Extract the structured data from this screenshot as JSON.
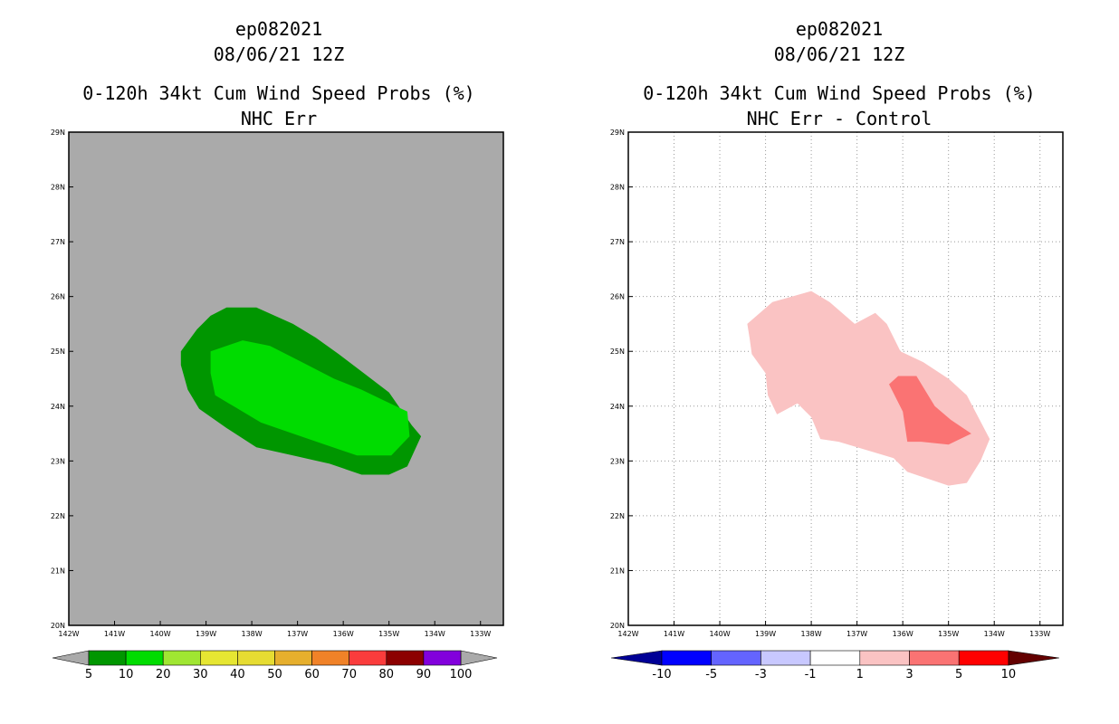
{
  "chart_data": [
    {
      "type": "filled-contour-map",
      "storm_id": "ep082021",
      "datetime": "08/06/21 12Z",
      "title": "0-120h 34kt Cum Wind Speed Probs (%)",
      "subtitle": "NHC Err",
      "background_color": "#aaaaaa",
      "x_range": [
        -142,
        -132.5
      ],
      "y_range": [
        20,
        29
      ],
      "x_ticks": [
        {
          "v": -142,
          "label": "142W"
        },
        {
          "v": -141,
          "label": "141W"
        },
        {
          "v": -140,
          "label": "140W"
        },
        {
          "v": -139,
          "label": "139W"
        },
        {
          "v": -138,
          "label": "138W"
        },
        {
          "v": -137,
          "label": "137W"
        },
        {
          "v": -136,
          "label": "136W"
        },
        {
          "v": -135,
          "label": "135W"
        },
        {
          "v": -134,
          "label": "134W"
        },
        {
          "v": -133,
          "label": "133W"
        }
      ],
      "y_ticks": [
        {
          "v": 20,
          "label": "20N"
        },
        {
          "v": 21,
          "label": "21N"
        },
        {
          "v": 22,
          "label": "22N"
        },
        {
          "v": 23,
          "label": "23N"
        },
        {
          "v": 24,
          "label": "24N"
        },
        {
          "v": 25,
          "label": "25N"
        },
        {
          "v": 26,
          "label": "26N"
        },
        {
          "v": 27,
          "label": "27N"
        },
        {
          "v": 28,
          "label": "28N"
        },
        {
          "v": 29,
          "label": "29N"
        }
      ],
      "contours": [
        {
          "level": "5-10",
          "color": "#009600",
          "lonlat": [
            [
              -138.55,
              25.8
            ],
            [
              -137.9,
              25.8
            ],
            [
              -137.1,
              25.5
            ],
            [
              -136.6,
              25.25
            ],
            [
              -136.1,
              24.95
            ],
            [
              -135.55,
              24.6
            ],
            [
              -135.0,
              24.25
            ],
            [
              -134.5,
              23.65
            ],
            [
              -134.3,
              23.45
            ],
            [
              -134.6,
              22.9
            ],
            [
              -135.0,
              22.75
            ],
            [
              -135.6,
              22.75
            ],
            [
              -136.3,
              22.95
            ],
            [
              -137.1,
              23.1
            ],
            [
              -137.9,
              23.25
            ],
            [
              -138.55,
              23.6
            ],
            [
              -139.15,
              23.95
            ],
            [
              -139.4,
              24.3
            ],
            [
              -139.55,
              24.75
            ],
            [
              -139.55,
              25.0
            ],
            [
              -139.2,
              25.4
            ],
            [
              -138.9,
              25.65
            ]
          ]
        },
        {
          "level": "10-20",
          "color": "#00dc00",
          "lonlat": [
            [
              -138.9,
              25.0
            ],
            [
              -138.2,
              25.2
            ],
            [
              -137.6,
              25.1
            ],
            [
              -136.9,
              24.8
            ],
            [
              -136.2,
              24.5
            ],
            [
              -135.6,
              24.3
            ],
            [
              -135.1,
              24.1
            ],
            [
              -134.6,
              23.9
            ],
            [
              -134.55,
              23.45
            ],
            [
              -134.95,
              23.1
            ],
            [
              -135.7,
              23.1
            ],
            [
              -136.4,
              23.3
            ],
            [
              -137.1,
              23.5
            ],
            [
              -137.8,
              23.7
            ],
            [
              -138.4,
              24.0
            ],
            [
              -138.8,
              24.2
            ],
            [
              -138.9,
              24.6
            ]
          ]
        }
      ],
      "colorbar": {
        "labels": [
          "5",
          "10",
          "20",
          "30",
          "40",
          "50",
          "60",
          "70",
          "80",
          "90",
          "100"
        ],
        "colors": [
          "#009600",
          "#00dc00",
          "#a0e632",
          "#e6e632",
          "#e6dc32",
          "#e6af2d",
          "#f08228",
          "#fa3c3c",
          "#8c0000",
          "#8200dc"
        ],
        "end_color": "#aaaaaa"
      }
    },
    {
      "type": "filled-contour-map",
      "storm_id": "ep082021",
      "datetime": "08/06/21 12Z",
      "title": "0-120h 34kt Cum Wind Speed Probs (%)",
      "subtitle": "NHC Err - Control",
      "background_color": "#ffffff",
      "grid": true,
      "x_range": [
        -142,
        -132.5
      ],
      "y_range": [
        20,
        29
      ],
      "x_ticks": [
        {
          "v": -142,
          "label": "142W"
        },
        {
          "v": -141,
          "label": "141W"
        },
        {
          "v": -140,
          "label": "140W"
        },
        {
          "v": -139,
          "label": "139W"
        },
        {
          "v": -138,
          "label": "138W"
        },
        {
          "v": -137,
          "label": "137W"
        },
        {
          "v": -136,
          "label": "136W"
        },
        {
          "v": -135,
          "label": "135W"
        },
        {
          "v": -134,
          "label": "134W"
        },
        {
          "v": -133,
          "label": "133W"
        }
      ],
      "y_ticks": [
        {
          "v": 20,
          "label": "20N"
        },
        {
          "v": 21,
          "label": "21N"
        },
        {
          "v": 22,
          "label": "22N"
        },
        {
          "v": 23,
          "label": "23N"
        },
        {
          "v": 24,
          "label": "24N"
        },
        {
          "v": 25,
          "label": "25N"
        },
        {
          "v": 26,
          "label": "26N"
        },
        {
          "v": 27,
          "label": "27N"
        },
        {
          "v": 28,
          "label": "28N"
        },
        {
          "v": 29,
          "label": "29N"
        }
      ],
      "contours": [
        {
          "level": "1-3",
          "color": "#fac3c3",
          "lonlat": [
            [
              -139.4,
              25.5
            ],
            [
              -138.85,
              25.9
            ],
            [
              -138.0,
              26.1
            ],
            [
              -137.6,
              25.9
            ],
            [
              -137.05,
              25.5
            ],
            [
              -136.6,
              25.7
            ],
            [
              -136.35,
              25.5
            ],
            [
              -136.05,
              25.0
            ],
            [
              -135.55,
              24.8
            ],
            [
              -135.0,
              24.5
            ],
            [
              -134.6,
              24.2
            ],
            [
              -134.1,
              23.4
            ],
            [
              -134.3,
              23.0
            ],
            [
              -134.6,
              22.6
            ],
            [
              -135.0,
              22.55
            ],
            [
              -135.9,
              22.8
            ],
            [
              -136.2,
              23.05
            ],
            [
              -137.4,
              23.35
            ],
            [
              -137.8,
              23.4
            ],
            [
              -138.0,
              23.8
            ],
            [
              -138.3,
              24.05
            ],
            [
              -138.75,
              23.85
            ],
            [
              -138.95,
              24.2
            ],
            [
              -139.0,
              24.6
            ],
            [
              -139.3,
              24.95
            ],
            [
              -139.35,
              25.25
            ]
          ]
        },
        {
          "level": "3-5",
          "color": "#fa7373",
          "lonlat": [
            [
              -136.1,
              24.55
            ],
            [
              -135.7,
              24.55
            ],
            [
              -135.3,
              24.0
            ],
            [
              -134.95,
              23.75
            ],
            [
              -134.5,
              23.5
            ],
            [
              -135.0,
              23.3
            ],
            [
              -135.6,
              23.35
            ],
            [
              -135.9,
              23.35
            ],
            [
              -136.0,
              23.9
            ],
            [
              -136.3,
              24.4
            ]
          ]
        }
      ],
      "colorbar": {
        "labels": [
          "-10",
          "-5",
          "-3",
          "-1",
          "1",
          "3",
          "5",
          "10"
        ],
        "colors": [
          "#0000ff",
          "#6464ff",
          "#c8c8ff",
          "#ffffff",
          "#fac3c3",
          "#fa7373",
          "#ff0000"
        ],
        "end_left_color": "#000096",
        "end_right_color": "#640000"
      }
    }
  ]
}
